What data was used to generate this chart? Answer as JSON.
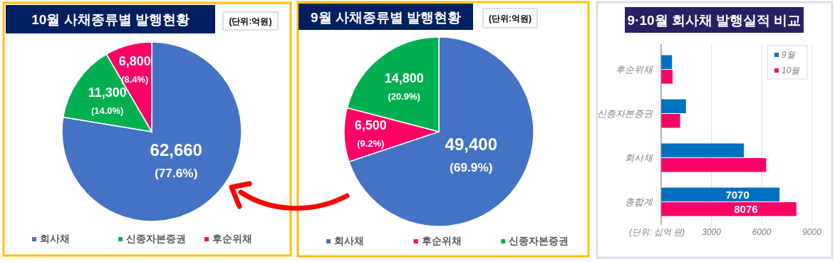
{
  "chart_data": [
    {
      "type": "pie",
      "title": "10월 사채종류별 발행현황",
      "annotations": [
        "(단위:억원)"
      ],
      "legend": "bottom",
      "categories": [
        "회사채",
        "신종자본증권",
        "후순위채"
      ],
      "values": [
        62660,
        11300,
        6800
      ],
      "colors": [
        "#4472c4",
        "#00b050",
        "#ff0066"
      ],
      "value_labels": [
        "62,660\n(77.6%)",
        "11,300\n(14.0%)",
        "6,800\n(8.4%)"
      ]
    },
    {
      "type": "pie",
      "title": "9월 사채종류별 발행현황",
      "annotations": [
        "(단위:억원)"
      ],
      "legend": "bottom",
      "categories": [
        "회사채",
        "후순위채",
        "신종자본증권"
      ],
      "values": [
        49400,
        6500,
        14800
      ],
      "colors": [
        "#4472c4",
        "#ff0066",
        "#00b050"
      ],
      "value_labels": [
        "49,400\n(69.9%)",
        "6,500\n(9.2%)",
        "14,800\n(20.9%)"
      ]
    },
    {
      "type": "bar",
      "orientation": "horizontal",
      "title": "9·10월 회사채 발행실적 비교",
      "annotations": [
        "(단위: 십억 원)"
      ],
      "categories": [
        "후순위채",
        "신종자본증권",
        "회사채",
        "총합계"
      ],
      "series": [
        {
          "name": "9월",
          "color": "#0070c0",
          "values": [
            650,
            1480,
            4940,
            7070
          ],
          "value_labels": [
            null,
            null,
            null,
            "7070"
          ]
        },
        {
          "name": "10월",
          "color": "#ff0066",
          "values": [
            680,
            1130,
            6270,
            8076
          ],
          "value_labels": [
            null,
            null,
            null,
            "8076"
          ]
        }
      ],
      "xlim": [
        0,
        9000
      ],
      "xticks": [
        3000,
        6000,
        9000
      ],
      "grid": "x",
      "legend": "top right"
    }
  ]
}
